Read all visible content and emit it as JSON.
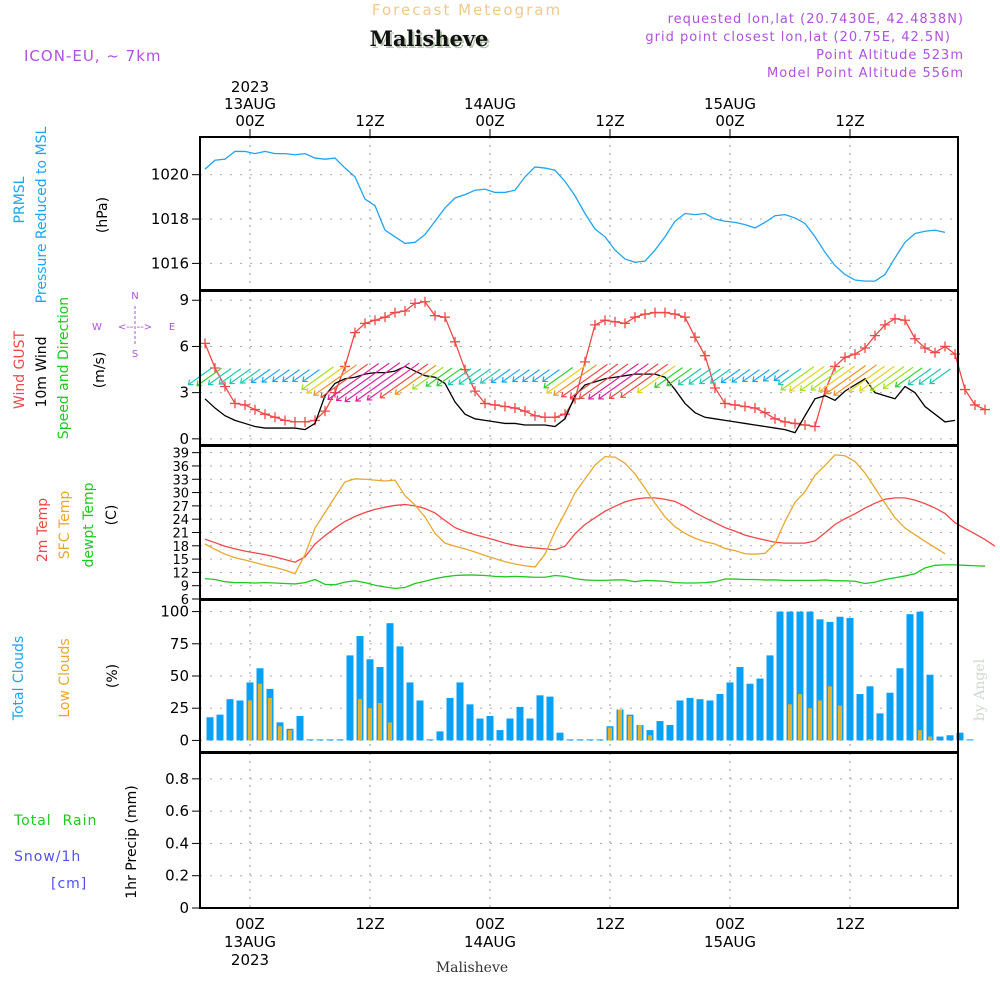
{
  "header": {
    "super_title": "Forecast Meteogram",
    "location": "Malisheve",
    "model": "ICON-EU,  ~  7km",
    "requested": "requested lon,lat (20.7430E, 42.4838N)",
    "grid_point": "grid point closest lon,lat (20.75E, 42.5N)",
    "point_altitude": "Point Altitude 523m",
    "model_altitude": "Model Point Altitude 556m",
    "footer_location": "Malisheve",
    "watermark": "by Angel"
  },
  "colors": {
    "pressure": "#1ea4f0",
    "gust": "#f04848",
    "wind10m": "#000000",
    "temp2m": "#f04848",
    "sfc": "#e8a830",
    "dewpt": "#20c820",
    "total_clouds": "#0aa0f5",
    "low_clouds": "#e0b030",
    "rain": "#20c820",
    "snow": "#5050f0",
    "meta": "#b050e0",
    "supertitle": "#f0c890"
  },
  "time_axis": {
    "top_labels": [
      {
        "h": 0,
        "lines": [
          "2023",
          "13AUG",
          "00Z"
        ]
      },
      {
        "h": 12,
        "lines": [
          "12Z"
        ]
      },
      {
        "h": 24,
        "lines": [
          "14AUG",
          "00Z"
        ]
      },
      {
        "h": 36,
        "lines": [
          "12Z"
        ]
      },
      {
        "h": 48,
        "lines": [
          "15AUG",
          "00Z"
        ]
      },
      {
        "h": 60,
        "lines": [
          "12Z"
        ]
      }
    ],
    "bottom_labels": [
      {
        "h": 0,
        "lines": [
          "00Z",
          "13AUG",
          "2023"
        ]
      },
      {
        "h": 12,
        "lines": [
          "12Z"
        ]
      },
      {
        "h": 24,
        "lines": [
          "00Z",
          "14AUG"
        ]
      },
      {
        "h": 36,
        "lines": [
          "12Z"
        ]
      },
      {
        "h": 48,
        "lines": [
          "00Z",
          "15AUG"
        ]
      },
      {
        "h": 60,
        "lines": [
          "12Z"
        ]
      }
    ],
    "range_hours": [
      -5,
      70.8
    ]
  },
  "chart_data": [
    {
      "type": "line",
      "id": "pressure",
      "title": "PRMSL Pressure Reduced to MSL",
      "ylabel_lines": [
        "PRMSL",
        "Pressure Reduced to MSL"
      ],
      "unit": "(hPa)",
      "ylim": [
        1014.8,
        1021.7
      ],
      "yticks": [
        1016,
        1018,
        1020
      ],
      "x_hours_start": -4.5,
      "x_step_hours": 1,
      "series": [
        {
          "name": "PRMSL",
          "values": [
            1020.25,
            1020.65,
            1020.7,
            1021.05,
            1021.05,
            1020.95,
            1021.05,
            1020.95,
            1020.95,
            1020.9,
            1020.95,
            1020.75,
            1020.7,
            1020.75,
            1020.3,
            1019.9,
            1018.9,
            1018.6,
            1017.5,
            1017.2,
            1016.9,
            1016.95,
            1017.3,
            1017.9,
            1018.5,
            1018.95,
            1019.1,
            1019.3,
            1019.35,
            1019.2,
            1019.2,
            1019.3,
            1019.9,
            1020.35,
            1020.3,
            1020.2,
            1019.7,
            1019.05,
            1018.25,
            1017.55,
            1017.2,
            1016.6,
            1016.2,
            1016.05,
            1016.1,
            1016.6,
            1017.2,
            1017.9,
            1018.25,
            1018.2,
            1018.25,
            1018.0,
            1017.9,
            1017.85,
            1017.75,
            1017.6,
            1017.85,
            1018.15,
            1018.2,
            1018.05,
            1017.8,
            1017.2,
            1016.5,
            1015.9,
            1015.5,
            1015.25,
            1015.2,
            1015.2,
            1015.5,
            1016.25,
            1016.95,
            1017.35,
            1017.45,
            1017.5,
            1017.4
          ]
        }
      ]
    },
    {
      "type": "line",
      "id": "wind",
      "title": "Wind GUST, 10m Wind Speed and Direction",
      "ylabel_lines": [
        "Wind GUST",
        "10m Wind",
        "Speed and Direction"
      ],
      "unit": "(m/s)",
      "compass": {
        "n": "N",
        "s": "S",
        "w": "W",
        "e": "E"
      },
      "ylim": [
        -0.4,
        9.6
      ],
      "yticks": [
        0,
        3,
        6,
        9
      ],
      "x_hours_start": -4.5,
      "x_step_hours": 1,
      "series": [
        {
          "name": "Wind GUST",
          "values": [
            6.2,
            4.6,
            3.4,
            2.3,
            2.2,
            1.9,
            1.6,
            1.4,
            1.2,
            1.1,
            1.1,
            1.2,
            1.8,
            3.0,
            4.7,
            6.9,
            7.5,
            7.7,
            7.9,
            8.2,
            8.3,
            8.8,
            8.9,
            8.0,
            7.9,
            6.3,
            4.5,
            3.1,
            2.3,
            2.2,
            2.1,
            2.0,
            1.8,
            1.5,
            1.4,
            1.4,
            1.6,
            2.6,
            5.0,
            7.4,
            7.7,
            7.6,
            7.5,
            7.9,
            8.1,
            8.2,
            8.2,
            8.1,
            7.9,
            6.6,
            5.4,
            3.3,
            2.3,
            2.2,
            2.1,
            2.0,
            1.7,
            1.3,
            1.1,
            1.0,
            0.9,
            0.8,
            3.1,
            4.7,
            5.3,
            5.5,
            5.9,
            6.7,
            7.4,
            7.8,
            7.7,
            6.5,
            5.9,
            5.6,
            6.0,
            5.5,
            3.2,
            2.2,
            1.9
          ]
        },
        {
          "name": "10m Wind",
          "values": [
            2.6,
            2.0,
            1.5,
            1.2,
            1.0,
            0.8,
            0.7,
            0.7,
            0.7,
            0.7,
            0.6,
            1.0,
            2.8,
            3.6,
            3.9,
            4.0,
            4.2,
            4.3,
            4.3,
            4.4,
            4.7,
            4.4,
            4.1,
            4.0,
            3.6,
            2.4,
            1.6,
            1.3,
            1.2,
            1.1,
            1.0,
            1.0,
            0.9,
            0.9,
            0.9,
            0.8,
            1.3,
            2.8,
            3.5,
            3.7,
            3.9,
            4.0,
            4.1,
            4.2,
            4.2,
            4.2,
            4.0,
            3.2,
            2.3,
            1.7,
            1.4,
            1.3,
            1.2,
            1.1,
            1.0,
            0.9,
            0.8,
            0.7,
            0.6,
            0.4,
            1.5,
            2.6,
            2.8,
            2.5,
            3.1,
            3.5,
            3.9,
            3.0,
            2.8,
            2.6,
            3.4,
            3.0,
            2.1,
            1.6,
            1.1,
            1.2
          ]
        },
        {
          "name": "Direction arrows (speed m/s, color class)",
          "values": [
            1.6,
            1.8,
            1.6,
            1.5,
            1.4,
            1.3,
            1.2,
            1.1,
            1.0,
            1.0,
            1.0,
            1.0,
            2.5,
            3.2,
            3.6,
            4.0,
            4.4,
            4.6,
            4.8,
            4.7,
            4.5,
            4.1,
            3.4,
            2.4,
            1.9,
            1.8,
            1.6,
            1.5,
            1.4,
            1.3,
            1.2,
            1.1,
            1.0,
            1.0,
            1.0,
            1.0,
            2.2,
            3.2,
            3.6,
            3.9,
            4.1,
            4.2,
            4.3,
            4.3,
            4.2,
            4.0,
            3.1,
            2.1,
            1.8,
            1.6,
            1.5,
            1.4,
            1.3,
            1.2,
            1.1,
            1.0,
            1.0,
            0.9,
            0.8,
            1.6,
            2.6,
            2.8,
            2.7,
            2.6,
            2.9,
            3.3,
            3.6,
            2.9,
            2.8,
            2.7,
            2.3,
            2.0,
            1.6,
            1.5,
            1.4
          ]
        }
      ]
    },
    {
      "type": "line",
      "id": "temperature",
      "title": "2m Temp, SFC Temp, dewpt Temp",
      "ylabel_lines": [
        "2m Temp",
        "SFC Temp",
        "dewpt Temp"
      ],
      "unit": "(C)",
      "ylim": [
        6,
        40.5
      ],
      "yticks": [
        6,
        9,
        12,
        15,
        18,
        21,
        24,
        27,
        30,
        33,
        36,
        39
      ],
      "x_hours_start": -4.5,
      "x_step_hours": 1,
      "series": [
        {
          "name": "2m Temp",
          "values": [
            19.5,
            18.7,
            17.9,
            17.3,
            16.8,
            16.4,
            16.0,
            15.5,
            14.9,
            14.3,
            15.5,
            18.4,
            20.3,
            22.0,
            23.5,
            24.6,
            25.5,
            26.2,
            26.7,
            27.1,
            27.3,
            27.0,
            26.4,
            25.4,
            23.7,
            22.1,
            21.2,
            20.5,
            19.9,
            19.3,
            18.6,
            18.1,
            17.7,
            17.5,
            17.3,
            17.1,
            17.9,
            20.7,
            22.8,
            24.3,
            25.8,
            26.9,
            27.9,
            28.5,
            28.8,
            28.8,
            28.5,
            28.0,
            26.9,
            25.5,
            24.3,
            23.2,
            22.1,
            21.3,
            20.4,
            19.8,
            19.3,
            18.8,
            18.6,
            18.6,
            18.6,
            19.1,
            20.9,
            22.8,
            24.1,
            25.2,
            26.5,
            27.6,
            28.5,
            28.8,
            28.8,
            28.3,
            27.5,
            26.5,
            25.3,
            23.2,
            21.9,
            20.7,
            19.4,
            17.9
          ]
        },
        {
          "name": "SFC Temp",
          "values": [
            18.4,
            17.2,
            16.1,
            15.3,
            14.8,
            14.2,
            13.6,
            13.1,
            12.5,
            11.7,
            16.0,
            22.0,
            25.5,
            29.0,
            32.4,
            33.1,
            33.0,
            32.8,
            32.6,
            32.8,
            29.3,
            27.2,
            24.5,
            20.8,
            18.6,
            17.9,
            17.3,
            16.6,
            15.8,
            15.1,
            14.4,
            13.9,
            13.5,
            13.2,
            16.1,
            21.2,
            25.4,
            29.9,
            33.1,
            36.2,
            38.1,
            38.0,
            36.6,
            34.2,
            31.0,
            27.6,
            24.5,
            22.3,
            20.8,
            19.7,
            18.9,
            18.4,
            17.4,
            16.9,
            16.2,
            16.1,
            16.3,
            18.5,
            23.5,
            27.8,
            30.2,
            33.9,
            36.1,
            38.5,
            38.3,
            37.0,
            34.4,
            31.0,
            27.6,
            24.3,
            22.0,
            20.5,
            19.0,
            17.6,
            16.2
          ]
        },
        {
          "name": "dewpt Temp",
          "values": [
            10.6,
            10.4,
            9.9,
            9.7,
            9.7,
            9.6,
            9.7,
            9.6,
            9.5,
            9.4,
            9.7,
            10.4,
            9.3,
            9.2,
            9.8,
            10.1,
            9.7,
            9.1,
            8.7,
            8.4,
            8.6,
            9.5,
            10.0,
            10.6,
            11.0,
            11.3,
            11.4,
            11.4,
            11.3,
            11.1,
            11.0,
            11.1,
            11.0,
            10.9,
            10.9,
            11.3,
            11.1,
            10.6,
            10.3,
            10.2,
            10.2,
            10.3,
            10.3,
            9.9,
            10.2,
            10.1,
            10.0,
            9.7,
            9.6,
            9.6,
            9.7,
            9.9,
            10.5,
            10.5,
            10.4,
            10.4,
            10.3,
            10.3,
            10.2,
            10.2,
            10.2,
            10.2,
            10.3,
            10.1,
            10.1,
            10.0,
            9.5,
            9.8,
            10.4,
            10.8,
            11.2,
            11.7,
            13.0,
            13.6,
            13.7,
            13.7,
            13.6,
            13.5,
            13.4
          ]
        }
      ]
    },
    {
      "type": "bar",
      "id": "clouds",
      "title": "Total Clouds, Low Clouds",
      "ylabel_lines": [
        "Total Clouds",
        "Low Clouds"
      ],
      "unit": "(%)",
      "ylim": [
        -9,
        109
      ],
      "yticks": [
        0,
        25,
        50,
        75,
        100
      ],
      "x_hours_start": -4,
      "x_step_hours": 1,
      "series": [
        {
          "name": "Total Clouds",
          "values": [
            18,
            20,
            32,
            31,
            45,
            56,
            40,
            14,
            9,
            19,
            0,
            0,
            0,
            0,
            66,
            81,
            63,
            57,
            91,
            73,
            45,
            31,
            0,
            7,
            33,
            45,
            28,
            17,
            19,
            8,
            17,
            26,
            17,
            35,
            34,
            6,
            0,
            0,
            0,
            0,
            11,
            24,
            20,
            12,
            8,
            15,
            12,
            31,
            33,
            32,
            31,
            36,
            45,
            57,
            44,
            48,
            66,
            100,
            100,
            100,
            100,
            94,
            92,
            96,
            95,
            36,
            42,
            21,
            37,
            56,
            98,
            100,
            51,
            3,
            4,
            6,
            0
          ]
        },
        {
          "name": "Low Clouds",
          "values": [
            0,
            0,
            0,
            0,
            31,
            44,
            33,
            11,
            8,
            0,
            0,
            0,
            0,
            0,
            0,
            32,
            25,
            29,
            14,
            0,
            0,
            0,
            0,
            0,
            0,
            0,
            0,
            0,
            0,
            0,
            0,
            0,
            0,
            0,
            0,
            0,
            0,
            0,
            0,
            0,
            10,
            24,
            19,
            12,
            4,
            0,
            0,
            0,
            0,
            0,
            0,
            0,
            0,
            0,
            0,
            0,
            0,
            0,
            28,
            36,
            25,
            31,
            42,
            27,
            0,
            0,
            1,
            0,
            0,
            0,
            0,
            8,
            3,
            0,
            0,
            0,
            0
          ]
        }
      ]
    },
    {
      "type": "bar",
      "id": "precip",
      "title": "1hr Precip (mm)",
      "ylabel_lines": [
        "Total  Rain",
        "Snow/1h",
        "[cm]"
      ],
      "unit": "1hr Precip (mm)",
      "ylim": [
        0,
        0.96
      ],
      "yticks": [
        0,
        0.2,
        0.4,
        0.6,
        0.8
      ],
      "ytick_labels": [
        "0",
        "0.2",
        "0.4",
        "0.6",
        "0.8"
      ],
      "series": [
        {
          "name": "Total Rain",
          "values": []
        },
        {
          "name": "Snow/1h",
          "values": []
        }
      ]
    }
  ]
}
